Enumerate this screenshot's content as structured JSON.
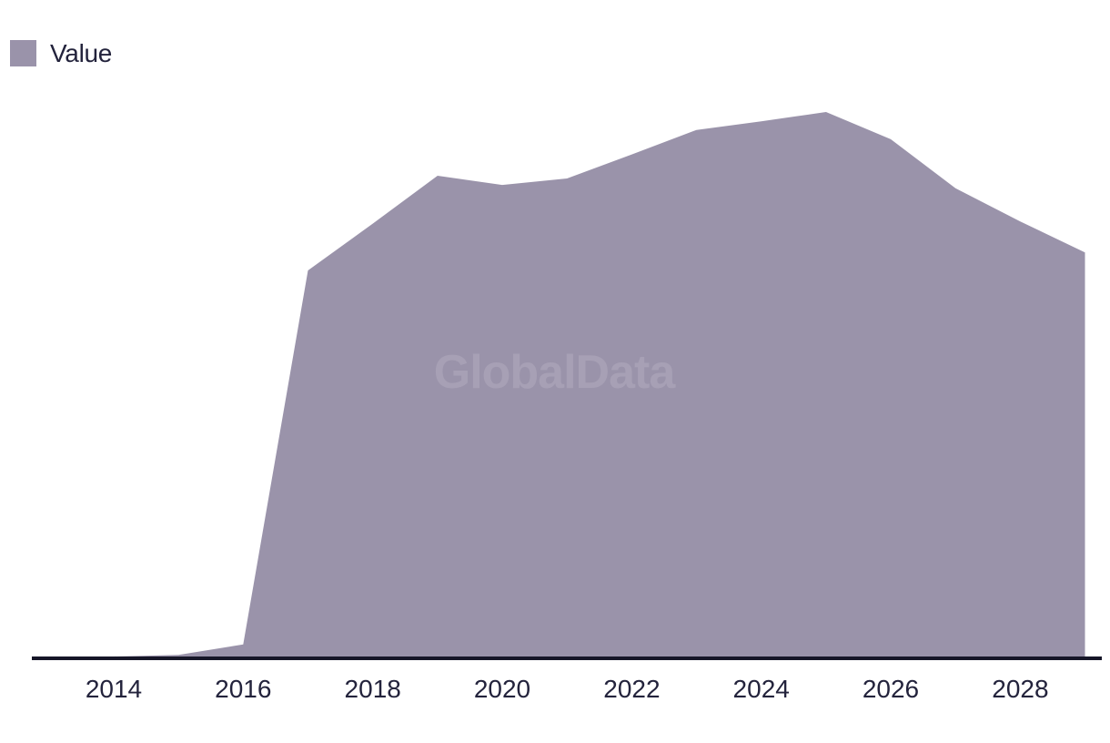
{
  "legend": {
    "label": "Value",
    "swatch_color": "#9A93AA"
  },
  "watermark": "GlobalData",
  "colors": {
    "background": "#FFFFFF",
    "area_fill": "#9A93AA",
    "watermark_text": "#A7A0B5",
    "axis_line": "#161628",
    "tick_text": "#23233C",
    "legend_text": "#23233C"
  },
  "chart_data": {
    "type": "area",
    "title": "",
    "xlabel": "",
    "ylabel": "",
    "grid": false,
    "legend_position": "top-left",
    "y_axis_visible": false,
    "value_scale": "percent_of_peak_value (no y-axis labels shown; values estimated relative to 2025 peak = 100)",
    "x_tick_labels": [
      "2014",
      "2016",
      "2018",
      "2020",
      "2022",
      "2024",
      "2026",
      "2028"
    ],
    "series": [
      {
        "name": "Value",
        "x": [
          2014,
          2015,
          2016,
          2017,
          2018,
          2019,
          2020,
          2021,
          2022,
          2023,
          2024,
          2025,
          2026,
          2027,
          2028,
          2029
        ],
        "values": [
          0,
          0.3,
          2.2,
          70.9,
          79.5,
          88.3,
          86.6,
          87.8,
          92.2,
          96.7,
          98.3,
          100,
          95.0,
          86.0,
          79.9,
          74.2
        ]
      }
    ]
  }
}
